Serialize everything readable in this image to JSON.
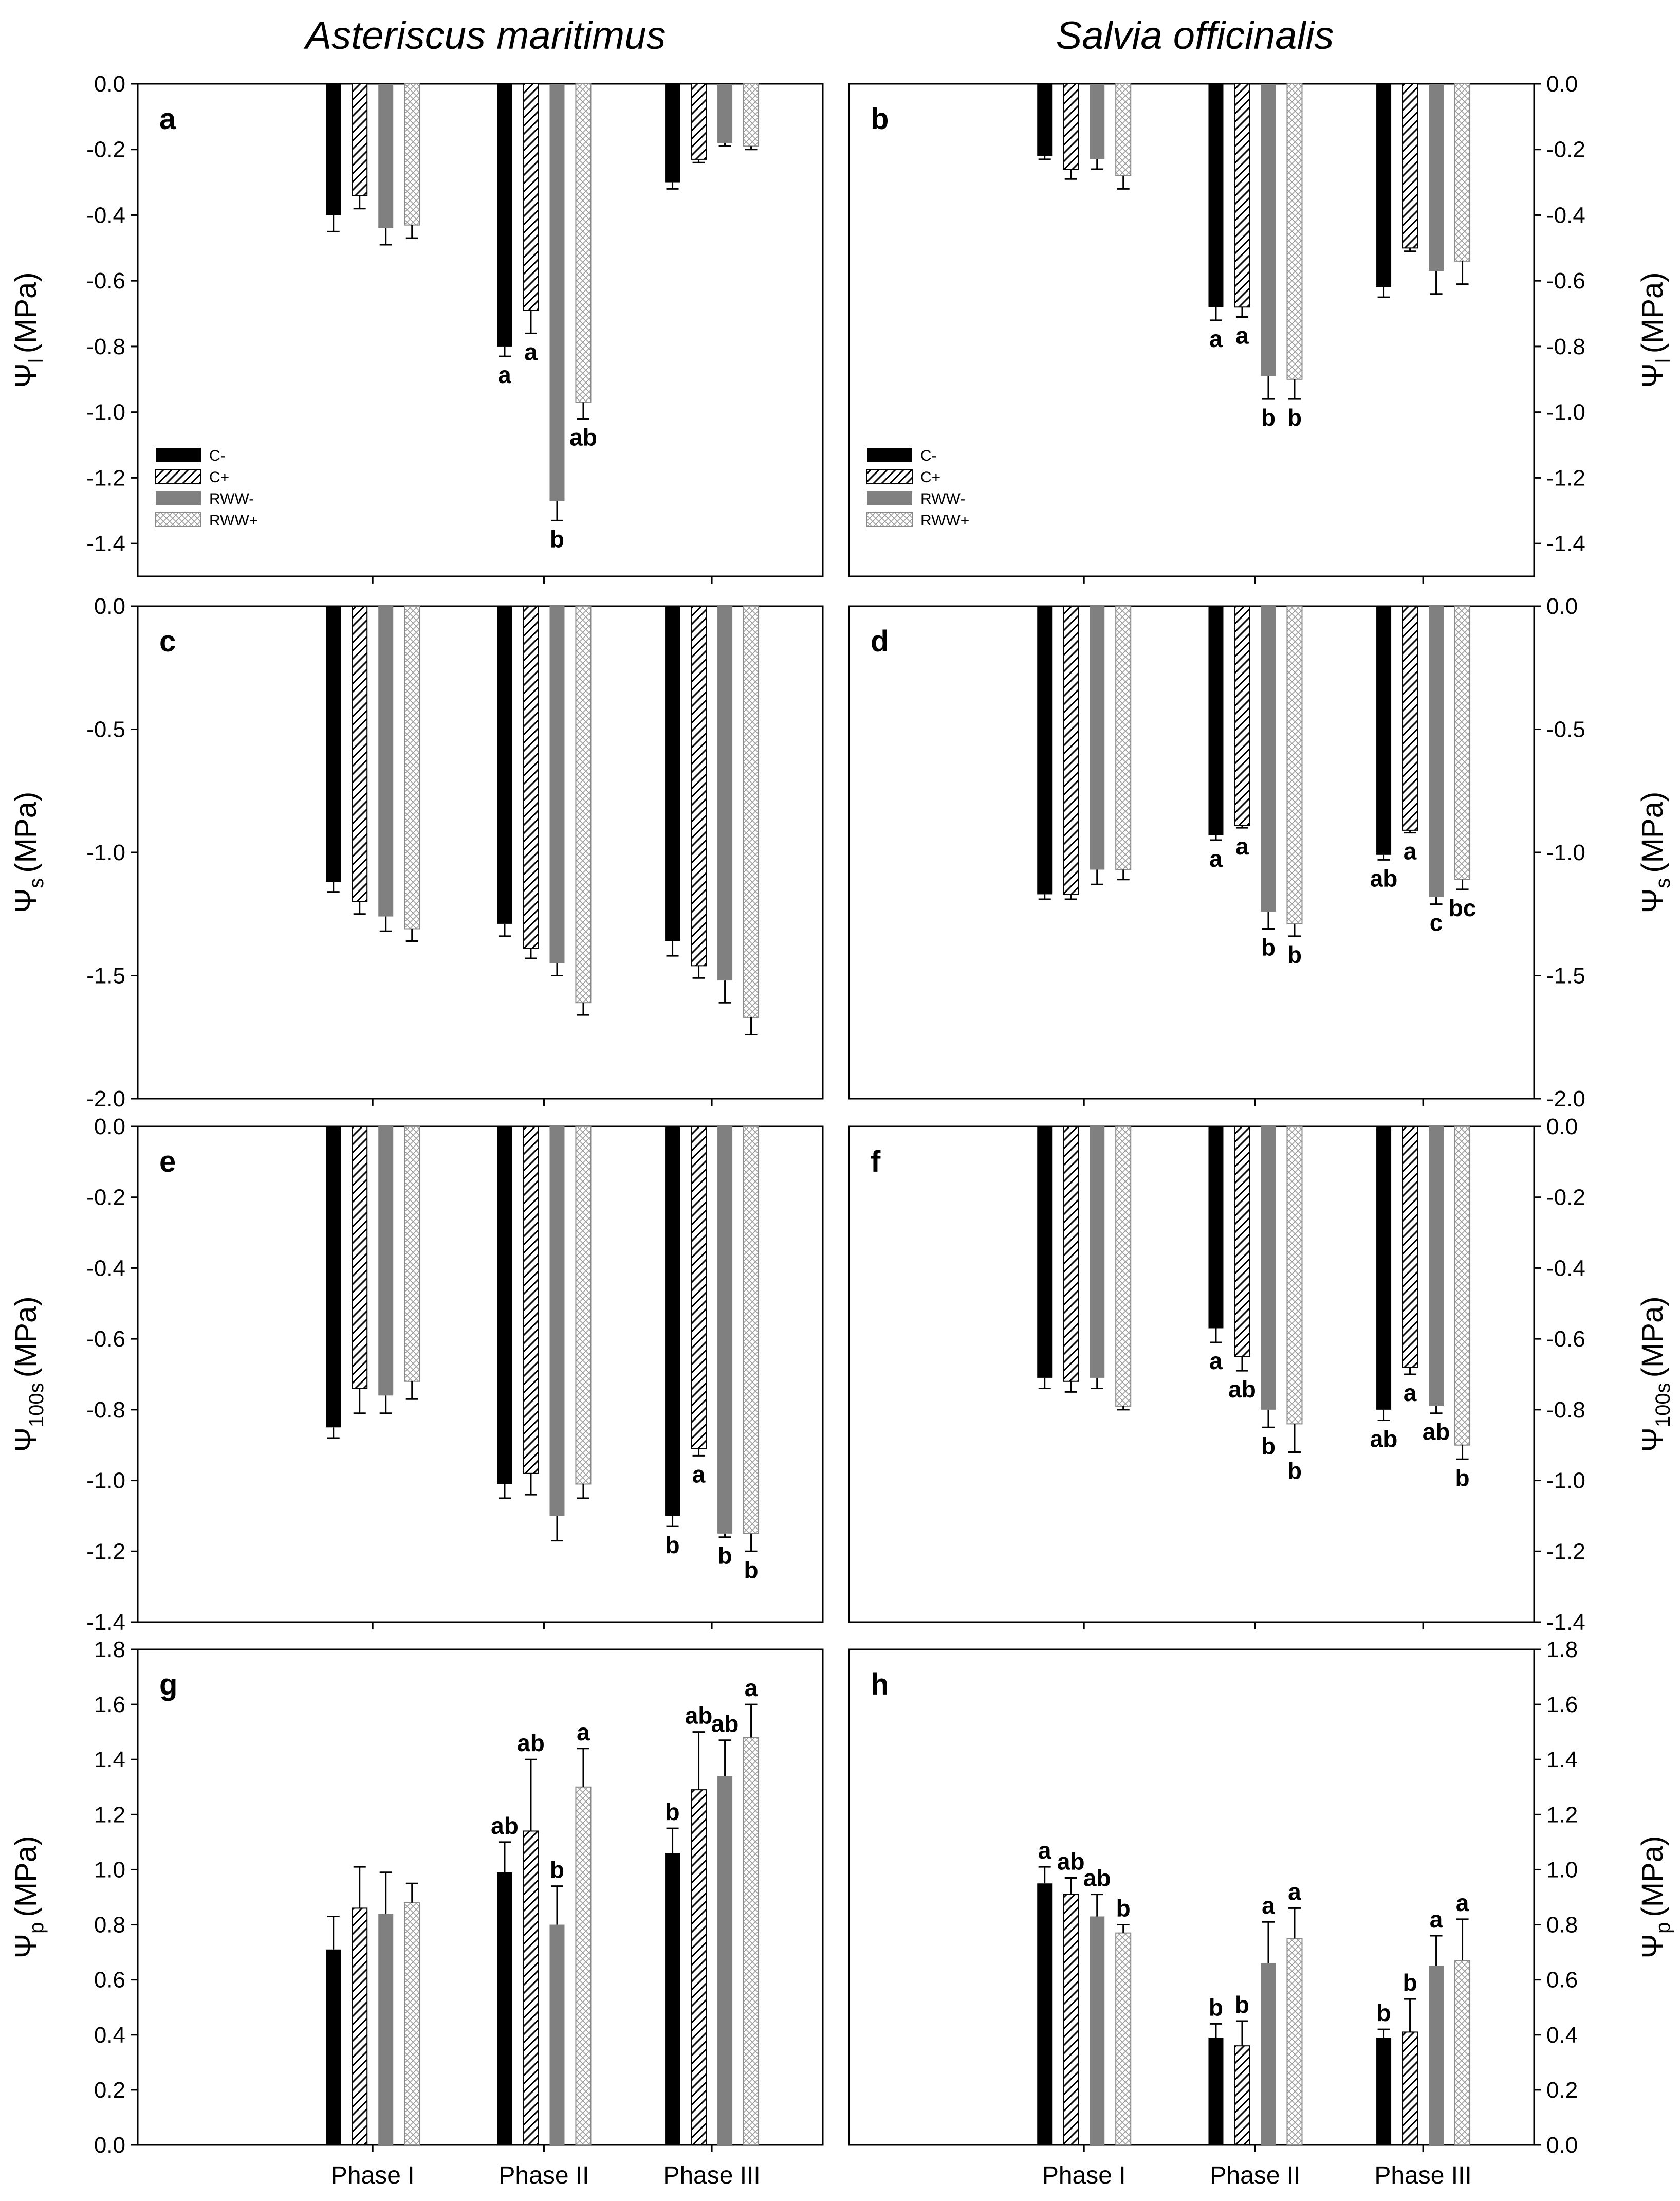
{
  "figure": {
    "left_title": "Asteriscus maritimus",
    "right_title": "Salvia officinalis"
  },
  "colors": {
    "C-": "#000000",
    "C+": "#ffffff",
    "RWW-": "#808080",
    "RWW+": "#d3d3d3"
  },
  "chart_data": [
    {
      "id": "a",
      "type": "bar",
      "panel_label": "a",
      "species": "Asteriscus maritimus",
      "ylabel_symbol": "Ψ",
      "ylabel_sub": "l",
      "ylabel_unit": "(MPa)",
      "ylim": [
        -1.5,
        0.0
      ],
      "yticks": [
        0.0,
        -0.2,
        -0.4,
        -0.6,
        -0.8,
        -1.0,
        -1.2,
        -1.4
      ],
      "ytick_labels": [
        "0.0",
        "-0.2",
        "-0.4",
        "-0.6",
        "-0.8",
        "-1.0",
        "-1.2",
        "-1.4"
      ],
      "categories": [
        "Phase I",
        "Phase II",
        "Phase III"
      ],
      "series": [
        {
          "name": "C-",
          "values": [
            -0.4,
            -0.8,
            -0.3
          ],
          "errors": [
            0.05,
            0.03,
            0.02
          ],
          "labels": [
            "",
            "a",
            ""
          ]
        },
        {
          "name": "C+",
          "values": [
            -0.34,
            -0.69,
            -0.23
          ],
          "errors": [
            0.04,
            0.07,
            0.01
          ],
          "labels": [
            "",
            "a",
            ""
          ]
        },
        {
          "name": "RWW-",
          "values": [
            -0.44,
            -1.27,
            -0.18
          ],
          "errors": [
            0.05,
            0.06,
            0.01
          ],
          "labels": [
            "",
            "b",
            ""
          ]
        },
        {
          "name": "RWW+",
          "values": [
            -0.43,
            -0.97,
            -0.19
          ],
          "errors": [
            0.04,
            0.05,
            0.01
          ],
          "labels": [
            "",
            "ab",
            ""
          ]
        }
      ],
      "legend": {
        "show": true,
        "location": "bottom-left",
        "entries": [
          "C-",
          "C+",
          "RWW-",
          "RWW+"
        ]
      }
    },
    {
      "id": "b",
      "type": "bar",
      "panel_label": "b",
      "species": "Salvia officinalis",
      "ylabel_symbol": "Ψ",
      "ylabel_sub": "l",
      "ylabel_unit": "(MPa)",
      "ylim": [
        -1.5,
        0.0
      ],
      "yticks": [
        0.0,
        -0.2,
        -0.4,
        -0.6,
        -0.8,
        -1.0,
        -1.2,
        -1.4
      ],
      "ytick_labels": [
        "0.0",
        "-0.2",
        "-0.4",
        "-0.6",
        "-0.8",
        "-1.0",
        "-1.2",
        "-1.4"
      ],
      "categories": [
        "Phase I",
        "Phase II",
        "Phase III"
      ],
      "series": [
        {
          "name": "C-",
          "values": [
            -0.22,
            -0.68,
            -0.62
          ],
          "errors": [
            0.01,
            0.04,
            0.03
          ],
          "labels": [
            "",
            "a",
            ""
          ]
        },
        {
          "name": "C+",
          "values": [
            -0.26,
            -0.68,
            -0.5
          ],
          "errors": [
            0.03,
            0.03,
            0.01
          ],
          "labels": [
            "",
            "a",
            ""
          ]
        },
        {
          "name": "RWW-",
          "values": [
            -0.23,
            -0.89,
            -0.57
          ],
          "errors": [
            0.03,
            0.07,
            0.07
          ],
          "labels": [
            "",
            "b",
            ""
          ]
        },
        {
          "name": "RWW+",
          "values": [
            -0.28,
            -0.9,
            -0.54
          ],
          "errors": [
            0.04,
            0.06,
            0.07
          ],
          "labels": [
            "",
            "b",
            ""
          ]
        }
      ],
      "legend": {
        "show": true,
        "location": "bottom-left",
        "entries": [
          "C-",
          "C+",
          "RWW-",
          "RWW+"
        ]
      }
    },
    {
      "id": "c",
      "type": "bar",
      "panel_label": "c",
      "species": "Asteriscus maritimus",
      "ylabel_symbol": "Ψ",
      "ylabel_sub": "s",
      "ylabel_unit": "(MPa)",
      "ylim": [
        -2.0,
        0.0
      ],
      "yticks": [
        0.0,
        -0.5,
        -1.0,
        -1.5,
        -2.0
      ],
      "ytick_labels": [
        "0.0",
        "-0.5",
        "-1.0",
        "-1.5",
        "-2.0"
      ],
      "categories": [
        "Phase I",
        "Phase II",
        "Phase III"
      ],
      "series": [
        {
          "name": "C-",
          "values": [
            -1.12,
            -1.29,
            -1.36
          ],
          "errors": [
            0.04,
            0.05,
            0.06
          ],
          "labels": [
            "",
            "",
            ""
          ]
        },
        {
          "name": "C+",
          "values": [
            -1.2,
            -1.39,
            -1.46
          ],
          "errors": [
            0.05,
            0.04,
            0.05
          ],
          "labels": [
            "",
            "",
            ""
          ]
        },
        {
          "name": "RWW-",
          "values": [
            -1.26,
            -1.45,
            -1.52
          ],
          "errors": [
            0.06,
            0.05,
            0.09
          ],
          "labels": [
            "",
            "",
            ""
          ]
        },
        {
          "name": "RWW+",
          "values": [
            -1.31,
            -1.61,
            -1.67
          ],
          "errors": [
            0.05,
            0.05,
            0.07
          ],
          "labels": [
            "",
            "",
            ""
          ]
        }
      ],
      "legend": {
        "show": false
      }
    },
    {
      "id": "d",
      "type": "bar",
      "panel_label": "d",
      "species": "Salvia officinalis",
      "ylabel_symbol": "Ψ",
      "ylabel_sub": "s",
      "ylabel_unit": "(MPa)",
      "ylim": [
        -2.0,
        0.0
      ],
      "yticks": [
        0.0,
        -0.5,
        -1.0,
        -1.5,
        -2.0
      ],
      "ytick_labels": [
        "0.0",
        "-0.5",
        "-1.0",
        "-1.5",
        "-2.0"
      ],
      "categories": [
        "Phase I",
        "Phase II",
        "Phase III"
      ],
      "series": [
        {
          "name": "C-",
          "values": [
            -1.17,
            -0.93,
            -1.01
          ],
          "errors": [
            0.02,
            0.02,
            0.02
          ],
          "labels": [
            "",
            "a",
            "ab"
          ]
        },
        {
          "name": "C+",
          "values": [
            -1.17,
            -0.89,
            -0.91
          ],
          "errors": [
            0.02,
            0.01,
            0.01
          ],
          "labels": [
            "",
            "a",
            "a"
          ]
        },
        {
          "name": "RWW-",
          "values": [
            -1.07,
            -1.24,
            -1.18
          ],
          "errors": [
            0.06,
            0.07,
            0.03
          ],
          "labels": [
            "",
            "b",
            "c"
          ]
        },
        {
          "name": "RWW+",
          "values": [
            -1.07,
            -1.29,
            -1.11
          ],
          "errors": [
            0.04,
            0.05,
            0.04
          ],
          "labels": [
            "",
            "b",
            "bc"
          ]
        }
      ],
      "legend": {
        "show": false
      }
    },
    {
      "id": "e",
      "type": "bar",
      "panel_label": "e",
      "species": "Asteriscus maritimus",
      "ylabel_symbol": "Ψ",
      "ylabel_sub": "100s",
      "ylabel_unit": "(MPa)",
      "ylim": [
        -1.4,
        0.0
      ],
      "yticks": [
        0.0,
        -0.2,
        -0.4,
        -0.6,
        -0.8,
        -1.0,
        -1.2,
        -1.4
      ],
      "ytick_labels": [
        "0.0",
        "-0.2",
        "-0.4",
        "-0.6",
        "-0.8",
        "-1.0",
        "-1.2",
        "-1.4"
      ],
      "categories": [
        "Phase I",
        "Phase II",
        "Phase III"
      ],
      "series": [
        {
          "name": "C-",
          "values": [
            -0.85,
            -1.01,
            -1.1
          ],
          "errors": [
            0.03,
            0.04,
            0.03
          ],
          "labels": [
            "",
            "",
            "b"
          ]
        },
        {
          "name": "C+",
          "values": [
            -0.74,
            -0.98,
            -0.91
          ],
          "errors": [
            0.07,
            0.06,
            0.02
          ],
          "labels": [
            "",
            "",
            "a"
          ]
        },
        {
          "name": "RWW-",
          "values": [
            -0.76,
            -1.1,
            -1.15
          ],
          "errors": [
            0.05,
            0.07,
            0.01
          ],
          "labels": [
            "",
            "",
            "b"
          ]
        },
        {
          "name": "RWW+",
          "values": [
            -0.72,
            -1.01,
            -1.15
          ],
          "errors": [
            0.05,
            0.04,
            0.05
          ],
          "labels": [
            "",
            "",
            "b"
          ]
        }
      ],
      "legend": {
        "show": false
      }
    },
    {
      "id": "f",
      "type": "bar",
      "panel_label": "f",
      "species": "Salvia officinalis",
      "ylabel_symbol": "Ψ",
      "ylabel_sub": "100s",
      "ylabel_unit": "(MPa)",
      "ylim": [
        -1.4,
        0.0
      ],
      "yticks": [
        0.0,
        -0.2,
        -0.4,
        -0.6,
        -0.8,
        -1.0,
        -1.2,
        -1.4
      ],
      "ytick_labels": [
        "0.0",
        "-0.2",
        "-0.4",
        "-0.6",
        "-0.8",
        "-1.0",
        "-1.2",
        "-1.4"
      ],
      "categories": [
        "Phase I",
        "Phase II",
        "Phase III"
      ],
      "series": [
        {
          "name": "C-",
          "values": [
            -0.71,
            -0.57,
            -0.8
          ],
          "errors": [
            0.03,
            0.04,
            0.03
          ],
          "labels": [
            "",
            "a",
            "ab"
          ]
        },
        {
          "name": "C+",
          "values": [
            -0.72,
            -0.65,
            -0.68
          ],
          "errors": [
            0.03,
            0.04,
            0.02
          ],
          "labels": [
            "",
            "ab",
            "a"
          ]
        },
        {
          "name": "RWW-",
          "values": [
            -0.71,
            -0.8,
            -0.79
          ],
          "errors": [
            0.03,
            0.05,
            0.02
          ],
          "labels": [
            "",
            "b",
            "ab"
          ]
        },
        {
          "name": "RWW+",
          "values": [
            -0.79,
            -0.84,
            -0.9
          ],
          "errors": [
            0.01,
            0.08,
            0.04
          ],
          "labels": [
            "",
            "b",
            "b"
          ]
        }
      ],
      "legend": {
        "show": false
      }
    },
    {
      "id": "g",
      "type": "bar",
      "panel_label": "g",
      "species": "Asteriscus maritimus",
      "ylabel_symbol": "Ψ",
      "ylabel_sub": "p",
      "ylabel_unit": "(MPa)",
      "ylim": [
        0.0,
        1.8
      ],
      "yticks": [
        0.0,
        0.2,
        0.4,
        0.6,
        0.8,
        1.0,
        1.2,
        1.4,
        1.6,
        1.8
      ],
      "ytick_labels": [
        "0.0",
        "0.2",
        "0.4",
        "0.6",
        "0.8",
        "1.0",
        "1.2",
        "1.4",
        "1.6",
        "1.8"
      ],
      "categories": [
        "Phase I",
        "Phase II",
        "Phase III"
      ],
      "series": [
        {
          "name": "C-",
          "values": [
            0.71,
            0.99,
            1.06
          ],
          "errors": [
            0.12,
            0.11,
            0.09
          ],
          "labels": [
            "",
            "ab",
            "b"
          ]
        },
        {
          "name": "C+",
          "values": [
            0.86,
            1.14,
            1.29
          ],
          "errors": [
            0.15,
            0.26,
            0.21
          ],
          "labels": [
            "",
            "ab",
            "ab"
          ]
        },
        {
          "name": "RWW-",
          "values": [
            0.84,
            0.8,
            1.34
          ],
          "errors": [
            0.15,
            0.14,
            0.13
          ],
          "labels": [
            "",
            "b",
            "ab"
          ]
        },
        {
          "name": "RWW+",
          "values": [
            0.88,
            1.3,
            1.48
          ],
          "errors": [
            0.07,
            0.14,
            0.12
          ],
          "labels": [
            "",
            "a",
            "a"
          ]
        }
      ],
      "legend": {
        "show": false
      }
    },
    {
      "id": "h",
      "type": "bar",
      "panel_label": "h",
      "species": "Salvia officinalis",
      "ylabel_symbol": "Ψ",
      "ylabel_sub": "p",
      "ylabel_unit": "(MPa)",
      "ylim": [
        0.0,
        1.8
      ],
      "yticks": [
        0.0,
        0.2,
        0.4,
        0.6,
        0.8,
        1.0,
        1.2,
        1.4,
        1.6,
        1.8
      ],
      "ytick_labels": [
        "0.0",
        "0.2",
        "0.4",
        "0.6",
        "0.8",
        "1.0",
        "1.2",
        "1.4",
        "1.6",
        "1.8"
      ],
      "categories": [
        "Phase I",
        "Phase II",
        "Phase III"
      ],
      "series": [
        {
          "name": "C-",
          "values": [
            0.95,
            0.39,
            0.39
          ],
          "errors": [
            0.06,
            0.05,
            0.03
          ],
          "labels": [
            "a",
            "b",
            "b"
          ]
        },
        {
          "name": "C+",
          "values": [
            0.91,
            0.36,
            0.41
          ],
          "errors": [
            0.06,
            0.09,
            0.12
          ],
          "labels": [
            "ab",
            "b",
            "b"
          ]
        },
        {
          "name": "RWW-",
          "values": [
            0.83,
            0.66,
            0.65
          ],
          "errors": [
            0.08,
            0.15,
            0.11
          ],
          "labels": [
            "ab",
            "a",
            "a"
          ]
        },
        {
          "name": "RWW+",
          "values": [
            0.77,
            0.75,
            0.67
          ],
          "errors": [
            0.03,
            0.11,
            0.15
          ],
          "labels": [
            "b",
            "a",
            "a"
          ]
        }
      ],
      "legend": {
        "show": false
      }
    }
  ]
}
